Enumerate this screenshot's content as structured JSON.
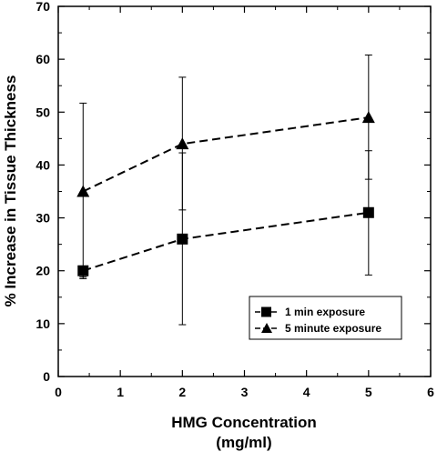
{
  "chart_data": {
    "type": "line",
    "xlabel_line1": "HMG Concentration",
    "xlabel_line2": "(mg/ml)",
    "ylabel": "% Increase in Tissue Thickness",
    "xlim": [
      0,
      6
    ],
    "ylim": [
      0,
      70
    ],
    "xticks": [
      "0",
      "1",
      "2",
      "3",
      "4",
      "5",
      "6"
    ],
    "yticks": [
      "0",
      "10",
      "20",
      "30",
      "40",
      "50",
      "60",
      "70"
    ],
    "grid": false,
    "legend_position": "bottom-right",
    "series": [
      {
        "name": "1 min exposure",
        "marker": "square",
        "color": "#000000",
        "line_style": "dashed",
        "x": [
          0.4,
          2,
          5
        ],
        "y": [
          20,
          26,
          31
        ],
        "err_low": [
          18.5,
          9.8,
          19.2
        ],
        "err_high": [
          20.5,
          42.3,
          42.7
        ]
      },
      {
        "name": "5 minute exposure",
        "marker": "triangle",
        "color": "#000000",
        "line_style": "dashed",
        "x": [
          0.4,
          2,
          5
        ],
        "y": [
          35,
          44,
          49
        ],
        "err_low": [
          18.8,
          31.5,
          37.3
        ],
        "err_high": [
          51.7,
          56.6,
          60.8
        ]
      }
    ]
  }
}
